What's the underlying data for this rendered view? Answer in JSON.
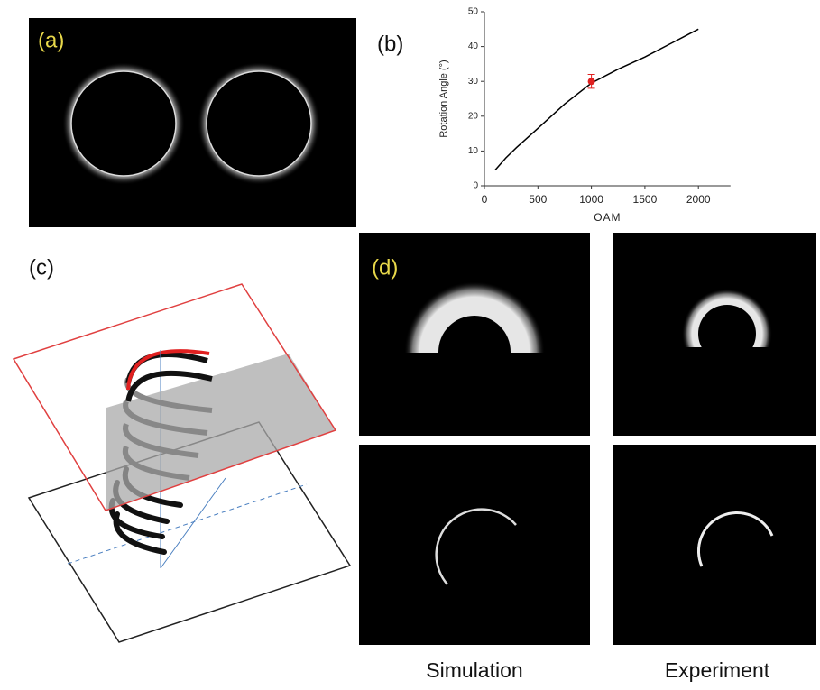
{
  "panels": {
    "a": "(a)",
    "b": "(b)",
    "c": "(c)",
    "d": "(d)"
  },
  "captions": {
    "simulation": "Simulation",
    "experiment": "Experiment"
  },
  "chart_data": {
    "type": "line",
    "xlabel": "OAM",
    "ylabel": "Rotation Angle (°)",
    "xlim": [
      0,
      2300
    ],
    "xticks": [
      0,
      500,
      1000,
      1500,
      2000
    ],
    "ylim": [
      0,
      50
    ],
    "yticks": [
      0,
      10,
      20,
      30,
      40,
      50
    ],
    "series": [
      {
        "color": "#000000",
        "x": [
          100,
          200,
          300,
          500,
          750,
          1000,
          1250,
          1500,
          1750,
          2000
        ],
        "values": [
          4.5,
          8,
          11,
          16.5,
          23.5,
          29.5,
          33.5,
          37,
          41,
          45
        ]
      },
      {
        "color": "#e02020",
        "x": [
          1000
        ],
        "values": [
          30
        ],
        "errors": [
          2
        ]
      }
    ]
  }
}
